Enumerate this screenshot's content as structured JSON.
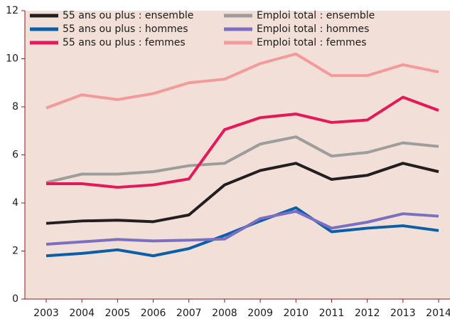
{
  "chart_data": {
    "type": "line",
    "categories": [
      "2003",
      "2004",
      "2005",
      "2006",
      "2007",
      "2008",
      "2009",
      "2010",
      "2011",
      "2012",
      "2013",
      "2014"
    ],
    "series": [
      {
        "name": "55 ans ou plus : ensemble",
        "color": "#231f20",
        "values": [
          3.15,
          3.25,
          3.28,
          3.22,
          3.5,
          4.75,
          5.35,
          5.65,
          4.98,
          5.15,
          5.65,
          5.3
        ]
      },
      {
        "name": "Emploi total : ensemble",
        "color": "#9d9d9c",
        "values": [
          4.85,
          5.2,
          5.2,
          5.3,
          5.55,
          5.65,
          6.45,
          6.75,
          5.95,
          6.1,
          6.5,
          6.35
        ]
      },
      {
        "name": "55 ans ou plus : hommes",
        "color": "#0b5ea8",
        "values": [
          1.8,
          1.9,
          2.05,
          1.8,
          2.1,
          2.65,
          3.25,
          3.8,
          2.8,
          2.95,
          3.05,
          2.85
        ]
      },
      {
        "name": "Emploi total : hommes",
        "color": "#7b6fc1",
        "values": [
          2.28,
          2.38,
          2.48,
          2.42,
          2.45,
          2.5,
          3.35,
          3.65,
          2.95,
          3.2,
          3.55,
          3.45
        ]
      },
      {
        "name": "55 ans ou plus : femmes",
        "color": "#e5195a",
        "values": [
          4.8,
          4.8,
          4.65,
          4.75,
          5.0,
          7.05,
          7.55,
          7.7,
          7.35,
          7.45,
          8.4,
          7.85
        ]
      },
      {
        "name": "Emploi total : femmes",
        "color": "#f39a9b",
        "values": [
          7.95,
          8.5,
          8.3,
          8.55,
          9.0,
          9.15,
          9.8,
          10.2,
          9.3,
          9.3,
          9.75,
          9.45
        ]
      }
    ],
    "ylim": [
      0,
      12
    ],
    "yticks": [
      0,
      2,
      4,
      6,
      8,
      10,
      12
    ],
    "grid": false,
    "legend": "top-left"
  }
}
